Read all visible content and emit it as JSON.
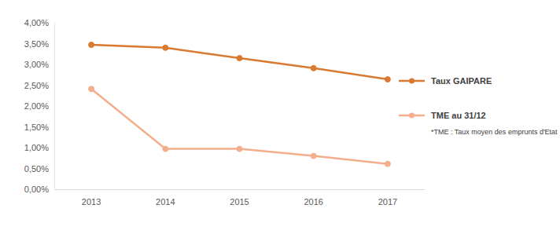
{
  "chart_data": {
    "type": "line",
    "categories": [
      "2013",
      "2014",
      "2015",
      "2016",
      "2017"
    ],
    "series": [
      {
        "name": "Taux GAIPARE",
        "color": "#d97a30",
        "marker": "circle",
        "values": [
          3.47,
          3.4,
          3.15,
          2.91,
          2.64
        ]
      },
      {
        "name": "TME au 31/12",
        "color": "#f4ae8c",
        "marker": "circle",
        "values": [
          2.41,
          0.97,
          0.97,
          0.8,
          0.61
        ]
      }
    ],
    "ylim": [
      0,
      4
    ],
    "yticks": [
      {
        "value": 0,
        "label": "0,00%"
      },
      {
        "value": 0.5,
        "label": "0,50%"
      },
      {
        "value": 1,
        "label": "1,00%"
      },
      {
        "value": 1.5,
        "label": "1,50%"
      },
      {
        "value": 2,
        "label": "2,00%"
      },
      {
        "value": 2.5,
        "label": "2,50%"
      },
      {
        "value": 3,
        "label": "3,00%"
      },
      {
        "value": 3.5,
        "label": "3,50%"
      },
      {
        "value": 4,
        "label": "4,00%"
      }
    ],
    "grid": false,
    "legend": "right",
    "annotations": [
      "*TME : Taux moyen des emprunts d'Etat"
    ]
  }
}
